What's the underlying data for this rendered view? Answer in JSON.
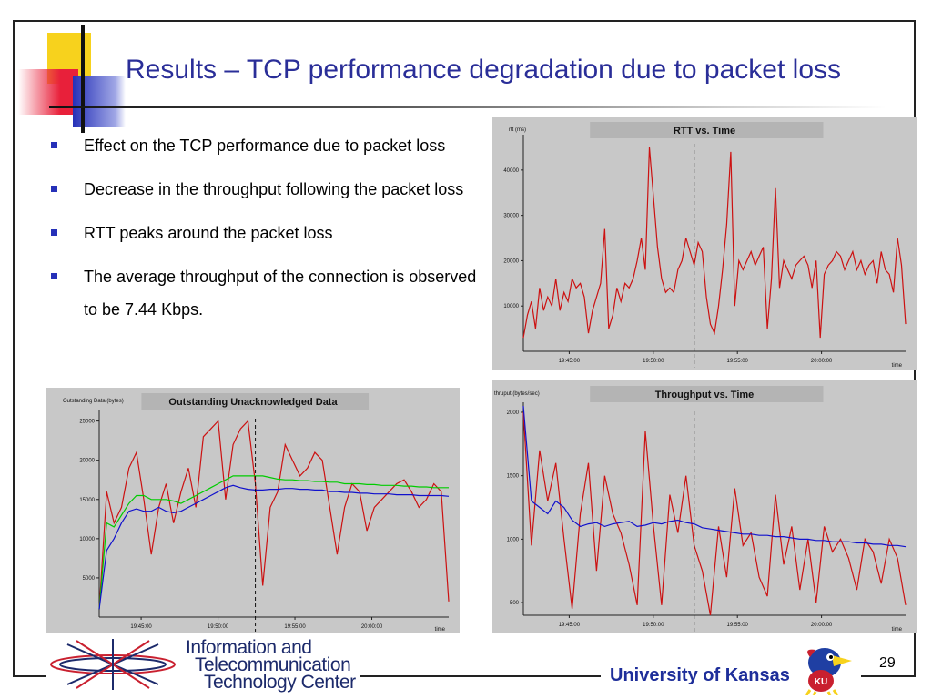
{
  "slide": {
    "title": "Results – TCP performance degradation due to packet loss",
    "page_number": "29",
    "bullets": [
      "Effect on the TCP performance due to packet loss",
      "Decrease in the throughput following the packet loss",
      "RTT peaks around the packet loss",
      "The average throughput of the connection is observed to be 7.44 Kbps."
    ],
    "footer": {
      "org_line1": "Information and",
      "org_line2": "Telecommunication",
      "org_line3": "Technology Center",
      "university": "University of Kansas",
      "mascot_text": "KU"
    }
  },
  "chart_data": [
    {
      "type": "line",
      "title": "RTT vs. Time",
      "ylabel": "rtt (ms)",
      "xlabel": "time",
      "x_ticks": [
        "19:45:00",
        "19:50:00",
        "19:55:00",
        "20:00:00"
      ],
      "y_ticks": [
        10000,
        20000,
        30000,
        40000
      ],
      "ylim": [
        0,
        47000
      ],
      "xlim": [
        0,
        94
      ],
      "marker_line_x": 42,
      "series": [
        {
          "color": "#cc1111",
          "x": [
            0,
            1,
            2,
            3,
            4,
            5,
            6,
            7,
            8,
            9,
            10,
            11,
            12,
            13,
            14,
            15,
            16,
            17,
            18,
            19,
            20,
            21,
            22,
            23,
            24,
            25,
            26,
            27,
            28,
            29,
            30,
            31,
            32,
            33,
            34,
            35,
            36,
            37,
            38,
            39,
            40,
            41,
            42,
            43,
            44,
            45,
            46,
            47,
            48,
            49,
            50,
            51,
            52,
            53,
            54,
            55,
            56,
            57,
            58,
            59,
            60,
            61,
            62,
            63,
            64,
            65,
            66,
            67,
            68,
            69,
            70,
            71,
            72,
            73,
            74,
            75,
            76,
            77,
            78,
            79,
            80,
            81,
            82,
            83,
            84,
            85,
            86,
            87,
            88,
            89,
            90,
            91,
            92,
            93,
            94
          ],
          "values": [
            3000,
            8000,
            11000,
            5000,
            14000,
            9000,
            12000,
            10000,
            16000,
            9000,
            13000,
            11000,
            16000,
            14000,
            15000,
            12000,
            4000,
            9000,
            12000,
            15000,
            27000,
            5000,
            8000,
            14000,
            11000,
            15000,
            14000,
            16000,
            20000,
            25000,
            18000,
            45000,
            34000,
            23000,
            16000,
            13000,
            14000,
            13000,
            18000,
            20000,
            25000,
            22000,
            19000,
            24000,
            22000,
            12000,
            6000,
            4000,
            10000,
            18000,
            28000,
            44000,
            10000,
            20000,
            18000,
            20000,
            22000,
            19000,
            21000,
            23000,
            5000,
            16000,
            36000,
            14000,
            20000,
            18000,
            16000,
            19000,
            20000,
            21000,
            19000,
            14000,
            20000,
            3000,
            17000,
            19000,
            20000,
            22000,
            21000,
            18000,
            20000,
            22000,
            18000,
            20000,
            17000,
            19000,
            20000,
            15000,
            22000,
            18000,
            17000,
            13000,
            25000,
            19000,
            6000
          ]
        }
      ]
    },
    {
      "type": "line",
      "title": "Outstanding Unacknowledged Data",
      "ylabel": "Outstanding Data (bytes)",
      "xlabel": "time",
      "x_ticks": [
        "19:45:00",
        "19:50:00",
        "19:55:00",
        "20:00:00"
      ],
      "y_ticks": [
        5000,
        10000,
        15000,
        20000,
        25000
      ],
      "ylim": [
        0,
        26000
      ],
      "xlim": [
        0,
        94
      ],
      "marker_line_x": 42,
      "series": [
        {
          "color": "#cc1111",
          "x": [
            0,
            2,
            4,
            6,
            8,
            10,
            12,
            14,
            16,
            18,
            20,
            22,
            24,
            26,
            28,
            30,
            32,
            34,
            36,
            38,
            40,
            42,
            44,
            46,
            48,
            50,
            52,
            54,
            56,
            58,
            60,
            62,
            64,
            66,
            68,
            70,
            72,
            74,
            76,
            78,
            80,
            82,
            84,
            86,
            88,
            90,
            92,
            94
          ],
          "values": [
            1000,
            16000,
            12000,
            14000,
            19000,
            21000,
            15000,
            8000,
            14000,
            17000,
            12000,
            16000,
            19000,
            14000,
            23000,
            24000,
            25000,
            15000,
            22000,
            24000,
            25000,
            17000,
            4000,
            14000,
            16000,
            22000,
            20000,
            18000,
            19000,
            21000,
            20000,
            14000,
            8000,
            14000,
            17000,
            16000,
            11000,
            14000,
            15000,
            16000,
            17000,
            17500,
            16000,
            14000,
            15000,
            17000,
            16000,
            2000
          ]
        },
        {
          "color": "#00cc00",
          "x": [
            0,
            2,
            4,
            6,
            8,
            10,
            12,
            14,
            16,
            18,
            20,
            22,
            24,
            26,
            28,
            30,
            32,
            34,
            36,
            38,
            40,
            42,
            44,
            46,
            48,
            50,
            52,
            54,
            56,
            58,
            60,
            62,
            64,
            66,
            68,
            70,
            72,
            74,
            76,
            78,
            80,
            82,
            84,
            86,
            88,
            90,
            92,
            94
          ],
          "values": [
            1000,
            12000,
            11500,
            13000,
            14500,
            15500,
            15500,
            15000,
            15000,
            15000,
            14800,
            14500,
            15000,
            15500,
            16000,
            16500,
            17000,
            17500,
            18000,
            18000,
            18000,
            18000,
            18000,
            17800,
            17600,
            17500,
            17500,
            17400,
            17400,
            17300,
            17300,
            17200,
            17200,
            17000,
            17000,
            17000,
            16900,
            16900,
            16800,
            16800,
            16800,
            16700,
            16700,
            16600,
            16600,
            16500,
            16500,
            16500
          ]
        },
        {
          "color": "#1111cc",
          "x": [
            0,
            2,
            4,
            6,
            8,
            10,
            12,
            14,
            16,
            18,
            20,
            22,
            24,
            26,
            28,
            30,
            32,
            34,
            36,
            38,
            40,
            42,
            44,
            46,
            48,
            50,
            52,
            54,
            56,
            58,
            60,
            62,
            64,
            66,
            68,
            70,
            72,
            74,
            76,
            78,
            80,
            82,
            84,
            86,
            88,
            90,
            92,
            94
          ],
          "values": [
            1000,
            8500,
            10000,
            12000,
            13500,
            13800,
            13500,
            13500,
            14000,
            13500,
            13300,
            13500,
            14000,
            14500,
            15000,
            15500,
            16000,
            16500,
            16800,
            16500,
            16300,
            16200,
            16200,
            16300,
            16300,
            16400,
            16400,
            16300,
            16300,
            16200,
            16200,
            16000,
            16000,
            15900,
            15900,
            15800,
            15800,
            15700,
            15700,
            15700,
            15600,
            15600,
            15600,
            15500,
            15500,
            15500,
            15500,
            15400
          ]
        }
      ]
    },
    {
      "type": "line",
      "title": "Throughput vs. Time",
      "ylabel": "thruput (bytes/sec)",
      "xlabel": "time",
      "x_ticks": [
        "19:45:00",
        "19:50:00",
        "19:55:00",
        "20:00:00"
      ],
      "y_ticks": [
        500,
        1000,
        1500,
        2000
      ],
      "ylim": [
        400,
        2050
      ],
      "xlim": [
        0,
        94
      ],
      "marker_line_x": 42,
      "series": [
        {
          "color": "#cc1111",
          "x": [
            0,
            2,
            4,
            6,
            8,
            10,
            12,
            14,
            16,
            18,
            20,
            22,
            24,
            26,
            28,
            30,
            32,
            34,
            36,
            38,
            40,
            42,
            44,
            46,
            48,
            50,
            52,
            54,
            56,
            58,
            60,
            62,
            64,
            66,
            68,
            70,
            72,
            74,
            76,
            78,
            80,
            82,
            84,
            86,
            88,
            90,
            92,
            94
          ],
          "values": [
            2000,
            950,
            1700,
            1300,
            1600,
            1000,
            450,
            1200,
            1600,
            750,
            1500,
            1200,
            1050,
            800,
            480,
            1850,
            1100,
            480,
            1350,
            1050,
            1500,
            950,
            750,
            400,
            1100,
            700,
            1400,
            950,
            1050,
            700,
            550,
            1350,
            800,
            1100,
            600,
            1000,
            500,
            1100,
            900,
            1000,
            850,
            600,
            1000,
            900,
            650,
            1000,
            850,
            480
          ]
        },
        {
          "color": "#1111cc",
          "x": [
            0,
            2,
            4,
            6,
            8,
            10,
            12,
            14,
            16,
            18,
            20,
            22,
            24,
            26,
            28,
            30,
            32,
            34,
            36,
            38,
            40,
            42,
            44,
            46,
            48,
            50,
            52,
            54,
            56,
            58,
            60,
            62,
            64,
            66,
            68,
            70,
            72,
            74,
            76,
            78,
            80,
            82,
            84,
            86,
            88,
            90,
            92,
            94
          ],
          "values": [
            2050,
            1300,
            1250,
            1200,
            1300,
            1250,
            1150,
            1100,
            1120,
            1130,
            1100,
            1120,
            1130,
            1140,
            1100,
            1110,
            1130,
            1120,
            1140,
            1150,
            1130,
            1120,
            1090,
            1080,
            1070,
            1060,
            1050,
            1040,
            1040,
            1030,
            1030,
            1020,
            1020,
            1010,
            1000,
            1000,
            990,
            990,
            980,
            980,
            980,
            970,
            970,
            960,
            960,
            950,
            950,
            940
          ]
        }
      ]
    }
  ]
}
